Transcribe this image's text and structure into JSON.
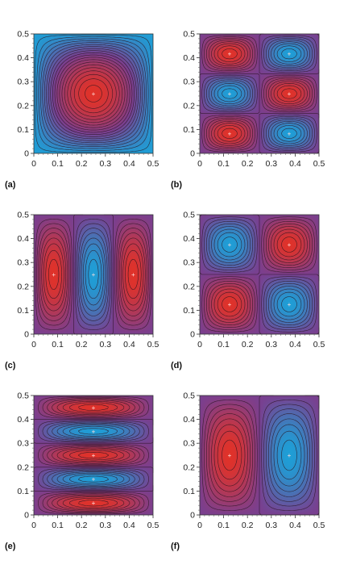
{
  "colors": {
    "low": "#1f9ed6",
    "mid": "#7a3f8f",
    "high": "#e0322a",
    "contour": "#2a1420"
  },
  "chart_data": [
    {
      "type": "heatmap",
      "panel": "(a)",
      "mode": [
        1,
        1
      ],
      "xlim": [
        0,
        0.5
      ],
      "ylim": [
        0,
        0.5
      ],
      "xticks": [
        "0",
        "0.1",
        "0.2",
        "0.3",
        "0.4",
        "0.5"
      ],
      "yticks": [
        "0",
        "0.1",
        "0.2",
        "0.3",
        "0.4",
        "0.5"
      ]
    },
    {
      "type": "heatmap",
      "panel": "(b)",
      "mode": [
        2,
        3
      ],
      "xlim": [
        0,
        0.5
      ],
      "ylim": [
        0,
        0.5
      ],
      "xticks": [
        "0",
        "0.1",
        "0.2",
        "0.3",
        "0.4",
        "0.5"
      ],
      "yticks": [
        "0",
        "0.1",
        "0.2",
        "0.3",
        "0.4",
        "0.5"
      ]
    },
    {
      "type": "heatmap",
      "panel": "(c)",
      "mode": [
        3,
        1
      ],
      "xlim": [
        0,
        0.5
      ],
      "ylim": [
        0,
        0.5
      ],
      "xticks": [
        "0",
        "0.1",
        "0.2",
        "0.3",
        "0.4",
        "0.5"
      ],
      "yticks": [
        "0",
        "0.1",
        "0.2",
        "0.3",
        "0.4",
        "0.5"
      ]
    },
    {
      "type": "heatmap",
      "panel": "(d)",
      "mode": [
        2,
        2
      ],
      "xlim": [
        0,
        0.5
      ],
      "ylim": [
        0,
        0.5
      ],
      "xticks": [
        "0",
        "0.1",
        "0.2",
        "0.3",
        "0.4",
        "0.5"
      ],
      "yticks": [
        "0",
        "0.1",
        "0.2",
        "0.3",
        "0.4",
        "0.5"
      ]
    },
    {
      "type": "heatmap",
      "panel": "(e)",
      "mode": [
        1,
        5
      ],
      "xlim": [
        0,
        0.5
      ],
      "ylim": [
        0,
        0.5
      ],
      "xticks": [
        "0",
        "0.1",
        "0.2",
        "0.3",
        "0.4",
        "0.5"
      ],
      "yticks": [
        "0",
        "0.1",
        "0.2",
        "0.3",
        "0.4",
        "0.5"
      ]
    },
    {
      "type": "heatmap",
      "panel": "(f)",
      "mode": [
        2,
        1
      ],
      "xlim": [
        0,
        0.5
      ],
      "ylim": [
        0,
        0.5
      ],
      "xticks": [
        "0",
        "0.1",
        "0.2",
        "0.3",
        "0.4",
        "0.5"
      ],
      "yticks": [
        "0",
        "0.1",
        "0.2",
        "0.3",
        "0.4",
        "0.5"
      ]
    }
  ]
}
